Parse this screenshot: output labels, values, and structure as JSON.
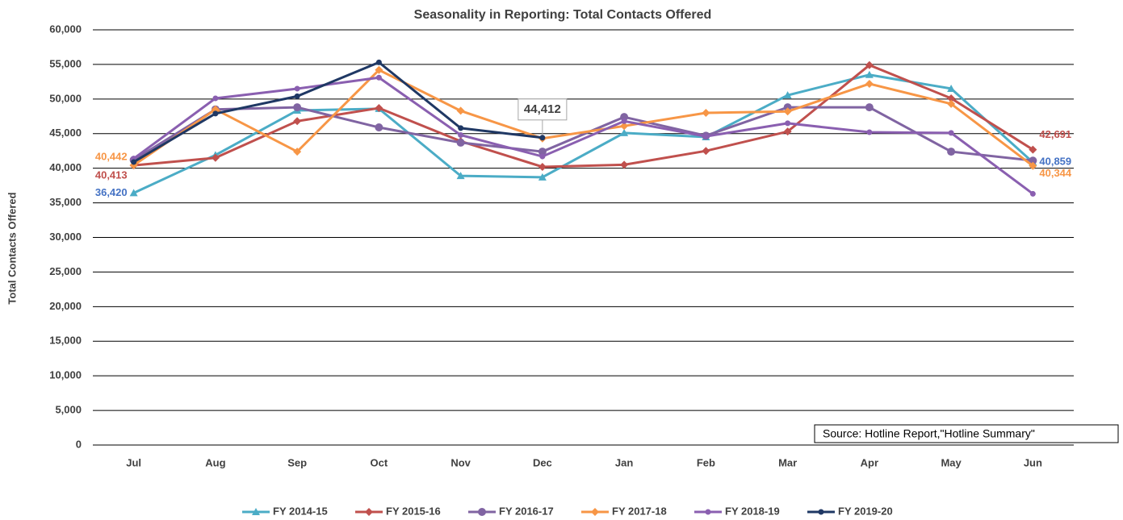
{
  "chart_data": {
    "type": "line",
    "title": "Seasonality in Reporting: Total Contacts Offered",
    "y_label": "Total Contacts Offered",
    "annotation": "Source: Hotline Report,\"Hotline Summary\"",
    "categories": [
      "Jul",
      "Aug",
      "Sep",
      "Oct",
      "Nov",
      "Dec",
      "Jan",
      "Feb",
      "Mar",
      "Apr",
      "May",
      "Jun"
    ],
    "ylim": [
      0,
      60000
    ],
    "yticks": [
      0,
      {
        "value": 5000,
        "label": "5,000"
      },
      {
        "value": 10000,
        "label": "10,000"
      },
      {
        "value": 15000,
        "label": "15,000"
      },
      {
        "value": 20000,
        "label": "20,000"
      },
      {
        "value": 25000,
        "label": "25,000"
      },
      {
        "value": 30000,
        "label": "30,000"
      },
      {
        "value": 35000,
        "label": "35,000"
      },
      {
        "value": 40000,
        "label": "40,000"
      },
      {
        "value": 45000,
        "label": "45,000"
      },
      {
        "value": 50000,
        "label": "50,000"
      },
      {
        "value": 55000,
        "label": "55,000"
      },
      {
        "value": 60000,
        "label": "60,000"
      }
    ],
    "grid": true,
    "legend": "bottom",
    "series": [
      {
        "name": "FY 2014-15",
        "color": "#4bacc6",
        "marker": "triangle",
        "values": [
          36420,
          41900,
          48350,
          48600,
          38900,
          38700,
          45100,
          44500,
          50550,
          53500,
          51500,
          40859
        ],
        "value_labels": [
          "36,420",
          null,
          null,
          null,
          null,
          null,
          null,
          null,
          null,
          null,
          null,
          "40,859"
        ]
      },
      {
        "name": "FY 2015-16",
        "color": "#c0504d",
        "marker": "diamond",
        "values": [
          40413,
          41500,
          46800,
          48700,
          43900,
          40200,
          40500,
          42500,
          45300,
          54900,
          50100,
          42691
        ],
        "value_labels": [
          "40,413",
          null,
          null,
          null,
          null,
          null,
          null,
          null,
          null,
          null,
          null,
          "42,691"
        ]
      },
      {
        "name": "FY 2016-17",
        "color": "#8064a2",
        "marker": "circle",
        "values": [
          41200,
          48500,
          48800,
          45900,
          43700,
          42400,
          47400,
          44700,
          48800,
          48800,
          42400,
          41100
        ]
      },
      {
        "name": "FY 2017-18",
        "color": "#f79646",
        "marker": "diamond",
        "values": [
          40442,
          48500,
          42400,
          54200,
          48300,
          44300,
          46100,
          48000,
          48200,
          52200,
          49300,
          40344
        ],
        "value_labels": [
          "40,442",
          null,
          null,
          null,
          null,
          null,
          null,
          null,
          null,
          null,
          null,
          "40,344"
        ]
      },
      {
        "name": "FY 2018-19",
        "color": "#8a5fb0",
        "marker": "dot",
        "values": [
          41400,
          50100,
          51500,
          53100,
          44800,
          41700,
          46800,
          44600,
          46500,
          45200,
          45100,
          36300
        ]
      },
      {
        "name": "FY 2019-20",
        "color": "#1f3864",
        "marker": "dot",
        "values": [
          40900,
          47900,
          50400,
          55300,
          45800,
          44412,
          null,
          null,
          null,
          null,
          null,
          null
        ],
        "value_labels": [
          null,
          null,
          null,
          null,
          null,
          "44,412",
          null,
          null,
          null,
          null,
          null,
          null
        ]
      }
    ]
  }
}
